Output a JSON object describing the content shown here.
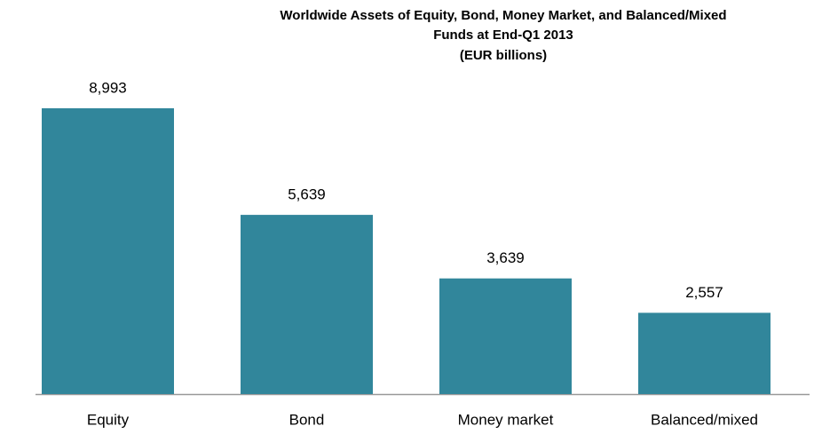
{
  "chart_data": {
    "type": "bar",
    "title": [
      "Worldwide Assets of Equity, Bond, Money Market, and Balanced/Mixed",
      "Funds at End-Q1 2013"
    ],
    "subtitle": "(EUR billions)",
    "categories": [
      "Equity",
      "Bond",
      "Money market",
      "Balanced/mixed"
    ],
    "values": [
      8993,
      5639,
      3639,
      2557
    ],
    "value_labels": [
      "8,993",
      "5,639",
      "3,639",
      "2,557"
    ],
    "color": "#31869b"
  }
}
